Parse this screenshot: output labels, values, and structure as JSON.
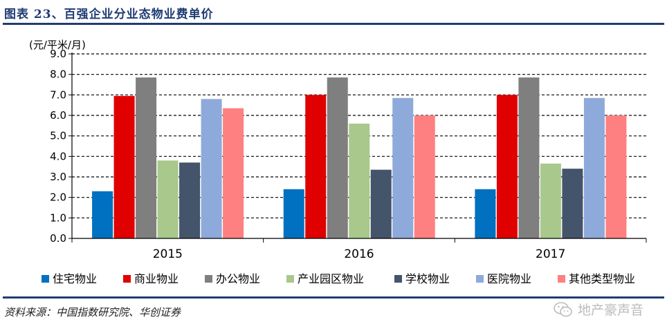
{
  "header": {
    "title": "图表 23、百强企业分业态物业费单价"
  },
  "footer": {
    "source": "资料来源：中国指数研究院、华创证券",
    "watermark": "地产豪声音",
    "watermark_icon": "wechat-icon"
  },
  "colors": {
    "title": "#1f3c73",
    "rule": "#1f3c73",
    "series": [
      "#0070c0",
      "#e00000",
      "#7f7f7f",
      "#a9c88c",
      "#44546a",
      "#8eaadb",
      "#ff8080"
    ]
  },
  "chart_data": {
    "type": "bar",
    "unit_label": "(元/平米/月)",
    "categories": [
      "2015",
      "2016",
      "2017"
    ],
    "ylim": [
      0,
      9
    ],
    "yticks": [
      "0.0",
      "1.0",
      "2.0",
      "3.0",
      "4.0",
      "5.0",
      "6.0",
      "7.0",
      "8.0",
      "9.0"
    ],
    "grid": "dashed-horizontal",
    "legend_position": "bottom",
    "series": [
      {
        "name": "住宅物业",
        "values": [
          2.3,
          2.4,
          2.4
        ]
      },
      {
        "name": "商业物业",
        "values": [
          6.95,
          7.0,
          7.0
        ]
      },
      {
        "name": "办公物业",
        "values": [
          7.85,
          7.85,
          7.85
        ]
      },
      {
        "name": "产业园区物业",
        "values": [
          3.8,
          5.6,
          3.65
        ]
      },
      {
        "name": "学校物业",
        "values": [
          3.7,
          3.35,
          3.4
        ]
      },
      {
        "name": "医院物业",
        "values": [
          6.8,
          6.85,
          6.85
        ]
      },
      {
        "name": "其他类型物业",
        "values": [
          6.35,
          6.0,
          6.0
        ]
      }
    ]
  }
}
